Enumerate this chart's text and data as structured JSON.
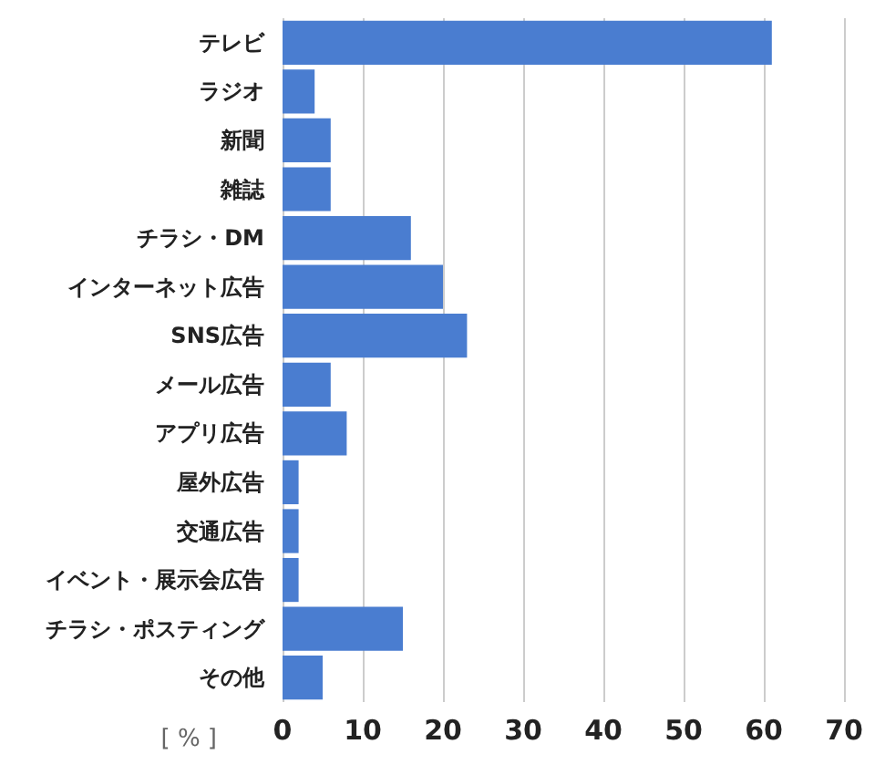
{
  "chart_data": {
    "type": "bar",
    "orientation": "horizontal",
    "categories": [
      "テレビ",
      "ラジオ",
      "新聞",
      "雑誌",
      "チラシ・DM",
      "インターネット広告",
      "SNS広告",
      "メール広告",
      "アプリ広告",
      "屋外広告",
      "交通広告",
      "イベント・展示会広告",
      "チラシ・ポスティング",
      "その他"
    ],
    "values": [
      61,
      4,
      6,
      6,
      16,
      20,
      23,
      6,
      8,
      2,
      2,
      2,
      15,
      5
    ],
    "color": "#4a7dd0",
    "xlabel": "[ % ]",
    "xlim": [
      0,
      70
    ],
    "xticks": [
      0,
      10,
      20,
      30,
      40,
      50,
      60,
      70
    ],
    "grid": "x"
  }
}
